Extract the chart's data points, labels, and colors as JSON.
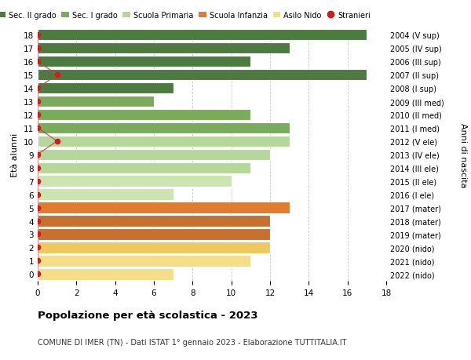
{
  "ages": [
    18,
    17,
    16,
    15,
    14,
    13,
    12,
    11,
    10,
    9,
    8,
    7,
    6,
    5,
    4,
    3,
    2,
    1,
    0
  ],
  "values": [
    17,
    13,
    11,
    17,
    7,
    6,
    11,
    13,
    13,
    12,
    11,
    10,
    7,
    13,
    12,
    12,
    12,
    11,
    7
  ],
  "stranieri_x": [
    0,
    0,
    0,
    1,
    0,
    0,
    0,
    0,
    1,
    0,
    0,
    0,
    0,
    0,
    0,
    0,
    0,
    0,
    0
  ],
  "right_labels": [
    "2004 (V sup)",
    "2005 (IV sup)",
    "2006 (III sup)",
    "2007 (II sup)",
    "2008 (I sup)",
    "2009 (III med)",
    "2010 (II med)",
    "2011 (I med)",
    "2012 (V ele)",
    "2013 (IV ele)",
    "2014 (III ele)",
    "2015 (II ele)",
    "2016 (I ele)",
    "2017 (mater)",
    "2018 (mater)",
    "2019 (mater)",
    "2020 (nido)",
    "2021 (nido)",
    "2022 (nido)"
  ],
  "bar_colors": [
    "#4d7a40",
    "#4d7a40",
    "#4d7a40",
    "#4d7a40",
    "#4d7a40",
    "#7aab5a",
    "#7aab5a",
    "#7aab5a",
    "#b5d89a",
    "#b5d89a",
    "#b5d89a",
    "#cce4b2",
    "#cce4b2",
    "#e07b30",
    "#c87030",
    "#c87030",
    "#f0c860",
    "#f5de88",
    "#f5de88"
  ],
  "stranieri_line_color": "#c84040",
  "stranieri_dot_color": "#cc2020",
  "legend_labels": [
    "Sec. II grado",
    "Sec. I grado",
    "Scuola Primaria",
    "Scuola Infanzia",
    "Asilo Nido",
    "Stranieri"
  ],
  "legend_colors": [
    "#4d7a40",
    "#7aab5a",
    "#b5d89a",
    "#e07b30",
    "#f5de88",
    "#cc2020"
  ],
  "title": "Popolazione per età scolastica - 2023",
  "subtitle": "COMUNE DI IMER (TN) - Dati ISTAT 1° gennaio 2023 - Elaborazione TUTTITALIA.IT",
  "ylabel_left": "Età alunni",
  "ylabel_right": "Anni di nascita",
  "xlim": [
    0,
    18
  ],
  "ylim": [
    -0.5,
    18.5
  ],
  "xticks": [
    0,
    2,
    4,
    6,
    8,
    10,
    12,
    14,
    16,
    18
  ],
  "background_color": "#ffffff",
  "grid_color": "#cccccc"
}
